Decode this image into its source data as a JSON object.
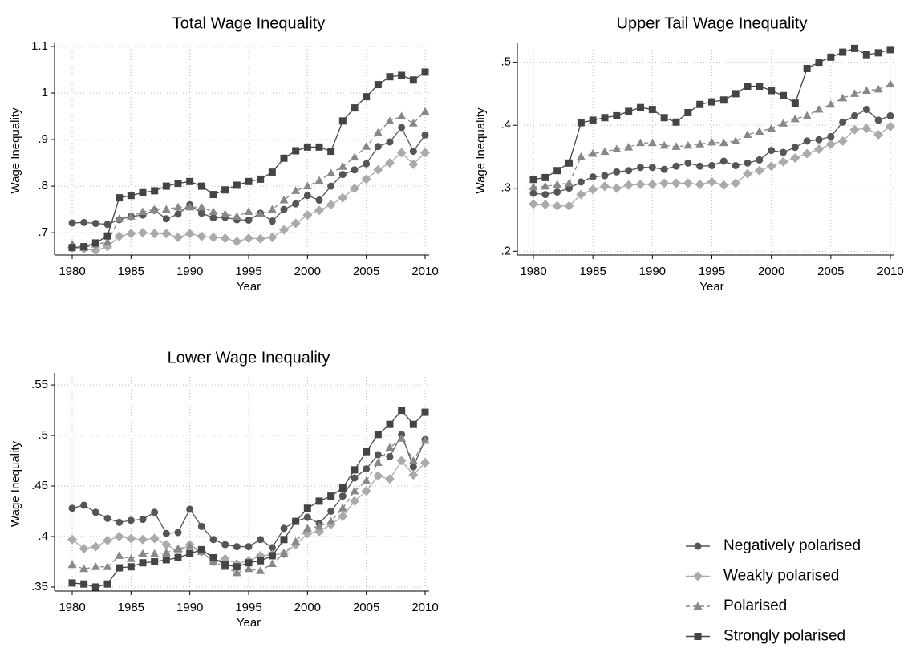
{
  "chart_data": [
    {
      "type": "line",
      "title": "Total Wage Inequality",
      "xlabel": "Year",
      "ylabel": "Wage Inequality",
      "x": [
        1980,
        1981,
        1982,
        1983,
        1984,
        1985,
        1986,
        1987,
        1988,
        1989,
        1990,
        1991,
        1992,
        1993,
        1994,
        1995,
        1996,
        1997,
        1998,
        1999,
        2000,
        2001,
        2002,
        2003,
        2004,
        2005,
        2006,
        2007,
        2008,
        2009,
        2010
      ],
      "xlim": [
        1980,
        2010
      ],
      "xticks": [
        1980,
        1985,
        1990,
        1995,
        2000,
        2005,
        2010
      ],
      "ylim": [
        0.652,
        1.1
      ],
      "yticks": [
        {
          "value": 0.7,
          "label": ".7"
        },
        {
          "value": 0.8,
          "label": ".8"
        },
        {
          "value": 0.9,
          "label": ".9"
        },
        1,
        1.1
      ],
      "grid": true,
      "series": [
        {
          "color": "#555555",
          "marker": "circle",
          "dashed": false,
          "values": [
            0.721,
            0.722,
            0.72,
            0.718,
            0.728,
            0.735,
            0.738,
            0.748,
            0.73,
            0.74,
            0.76,
            0.742,
            0.732,
            0.733,
            0.728,
            0.727,
            0.742,
            0.725,
            0.75,
            0.762,
            0.78,
            0.77,
            0.8,
            0.825,
            0.835,
            0.848,
            0.885,
            0.895,
            0.926,
            0.875,
            0.91
          ]
        },
        {
          "color": "#aaaaaa",
          "marker": "diamond",
          "dashed": false,
          "values": [
            0.668,
            0.665,
            0.662,
            0.67,
            0.692,
            0.698,
            0.7,
            0.698,
            0.698,
            0.69,
            0.698,
            0.692,
            0.69,
            0.688,
            0.681,
            0.688,
            0.687,
            0.69,
            0.706,
            0.72,
            0.738,
            0.748,
            0.76,
            0.775,
            0.795,
            0.815,
            0.835,
            0.85,
            0.872,
            0.847,
            0.872
          ]
        },
        {
          "color": "#888888",
          "marker": "triangle",
          "dashed": true,
          "values": [
            0.675,
            0.668,
            0.675,
            0.68,
            0.73,
            0.735,
            0.745,
            0.75,
            0.75,
            0.755,
            0.755,
            0.755,
            0.745,
            0.74,
            0.735,
            0.745,
            0.74,
            0.75,
            0.77,
            0.79,
            0.8,
            0.812,
            0.828,
            0.842,
            0.862,
            0.885,
            0.915,
            0.94,
            0.95,
            0.935,
            0.96
          ]
        },
        {
          "color": "#444444",
          "marker": "square",
          "dashed": false,
          "values": [
            0.668,
            0.67,
            0.678,
            0.693,
            0.775,
            0.78,
            0.786,
            0.79,
            0.8,
            0.806,
            0.81,
            0.8,
            0.782,
            0.792,
            0.802,
            0.81,
            0.815,
            0.83,
            0.86,
            0.876,
            0.884,
            0.884,
            0.875,
            0.94,
            0.968,
            0.992,
            1.018,
            1.035,
            1.038,
            1.028,
            1.045
          ]
        }
      ]
    },
    {
      "type": "line",
      "title": "Upper Tail Wage Inequality",
      "xlabel": "Year",
      "ylabel": "Wage Inequality",
      "x": [
        1980,
        1981,
        1982,
        1983,
        1984,
        1985,
        1986,
        1987,
        1988,
        1989,
        1990,
        1991,
        1992,
        1993,
        1994,
        1995,
        1996,
        1997,
        1998,
        1999,
        2000,
        2001,
        2002,
        2003,
        2004,
        2005,
        2006,
        2007,
        2008,
        2009,
        2010
      ],
      "xlim": [
        1980,
        2010
      ],
      "xticks": [
        1980,
        1985,
        1990,
        1995,
        2000,
        2005,
        2010
      ],
      "ylim": [
        0.194,
        0.525
      ],
      "yticks": [
        {
          "value": 0.2,
          "label": ".2"
        },
        {
          "value": 0.3,
          "label": ".3"
        },
        {
          "value": 0.4,
          "label": ".4"
        },
        {
          "value": 0.5,
          "label": ".5"
        }
      ],
      "grid": true,
      "series": [
        {
          "color": "#555555",
          "marker": "circle",
          "dashed": false,
          "values": [
            0.292,
            0.29,
            0.294,
            0.3,
            0.31,
            0.318,
            0.32,
            0.326,
            0.328,
            0.333,
            0.333,
            0.33,
            0.335,
            0.34,
            0.335,
            0.336,
            0.343,
            0.336,
            0.34,
            0.345,
            0.36,
            0.357,
            0.365,
            0.375,
            0.377,
            0.382,
            0.405,
            0.415,
            0.425,
            0.408,
            0.415
          ]
        },
        {
          "color": "#aaaaaa",
          "marker": "diamond",
          "dashed": false,
          "values": [
            0.275,
            0.274,
            0.272,
            0.272,
            0.29,
            0.298,
            0.303,
            0.3,
            0.305,
            0.306,
            0.306,
            0.308,
            0.308,
            0.308,
            0.306,
            0.31,
            0.305,
            0.308,
            0.323,
            0.328,
            0.335,
            0.342,
            0.348,
            0.355,
            0.362,
            0.37,
            0.375,
            0.393,
            0.395,
            0.385,
            0.398
          ]
        },
        {
          "color": "#888888",
          "marker": "triangle",
          "dashed": true,
          "values": [
            0.302,
            0.303,
            0.306,
            0.308,
            0.35,
            0.355,
            0.358,
            0.362,
            0.365,
            0.372,
            0.372,
            0.368,
            0.366,
            0.368,
            0.37,
            0.373,
            0.372,
            0.375,
            0.385,
            0.39,
            0.395,
            0.403,
            0.41,
            0.415,
            0.425,
            0.433,
            0.443,
            0.45,
            0.455,
            0.457,
            0.465
          ]
        },
        {
          "color": "#444444",
          "marker": "square",
          "dashed": false,
          "values": [
            0.314,
            0.317,
            0.328,
            0.34,
            0.404,
            0.408,
            0.412,
            0.415,
            0.422,
            0.428,
            0.425,
            0.412,
            0.405,
            0.42,
            0.433,
            0.437,
            0.44,
            0.45,
            0.462,
            0.462,
            0.455,
            0.447,
            0.435,
            0.49,
            0.5,
            0.508,
            0.516,
            0.522,
            0.512,
            0.515,
            0.52
          ]
        }
      ]
    },
    {
      "type": "line",
      "title": "Lower Wage Inequality",
      "xlabel": "Year",
      "ylabel": "Wage Inequality",
      "x": [
        1980,
        1981,
        1982,
        1983,
        1984,
        1985,
        1986,
        1987,
        1988,
        1989,
        1990,
        1991,
        1992,
        1993,
        1994,
        1995,
        1996,
        1997,
        1998,
        1999,
        2000,
        2001,
        2002,
        2003,
        2004,
        2005,
        2006,
        2007,
        2008,
        2009,
        2010
      ],
      "xlim": [
        1980,
        2010
      ],
      "xticks": [
        1980,
        1985,
        1990,
        1995,
        2000,
        2005,
        2010
      ],
      "ylim": [
        0.346,
        0.558
      ],
      "yticks": [
        {
          "value": 0.35,
          "label": ".35"
        },
        {
          "value": 0.4,
          "label": ".4"
        },
        {
          "value": 0.45,
          "label": ".45"
        },
        {
          "value": 0.5,
          "label": ".5"
        },
        {
          "value": 0.55,
          "label": ".55"
        }
      ],
      "grid": true,
      "series": [
        {
          "name": "Negatively polarised",
          "color": "#555555",
          "marker": "circle",
          "dashed": false,
          "values": [
            0.428,
            0.431,
            0.424,
            0.418,
            0.414,
            0.416,
            0.417,
            0.424,
            0.403,
            0.404,
            0.427,
            0.41,
            0.397,
            0.392,
            0.39,
            0.39,
            0.397,
            0.389,
            0.408,
            0.415,
            0.419,
            0.413,
            0.425,
            0.44,
            0.458,
            0.467,
            0.481,
            0.479,
            0.501,
            0.469,
            0.496
          ]
        },
        {
          "name": "Weakly polarised",
          "color": "#aaaaaa",
          "marker": "diamond",
          "dashed": false,
          "values": [
            0.397,
            0.388,
            0.39,
            0.396,
            0.4,
            0.398,
            0.397,
            0.398,
            0.392,
            0.385,
            0.392,
            0.385,
            0.375,
            0.378,
            0.373,
            0.376,
            0.381,
            0.382,
            0.383,
            0.392,
            0.403,
            0.405,
            0.412,
            0.42,
            0.435,
            0.445,
            0.46,
            0.457,
            0.475,
            0.461,
            0.473
          ]
        },
        {
          "name": "Polarised",
          "color": "#888888",
          "marker": "triangle",
          "dashed": true,
          "values": [
            0.372,
            0.368,
            0.37,
            0.37,
            0.381,
            0.378,
            0.383,
            0.383,
            0.384,
            0.388,
            0.39,
            0.385,
            0.375,
            0.37,
            0.364,
            0.368,
            0.366,
            0.373,
            0.383,
            0.395,
            0.408,
            0.41,
            0.415,
            0.428,
            0.445,
            0.455,
            0.473,
            0.488,
            0.497,
            0.475,
            0.495
          ]
        },
        {
          "name": "Strongly polarised",
          "color": "#444444",
          "marker": "square",
          "dashed": false,
          "values": [
            0.354,
            0.353,
            0.35,
            0.353,
            0.369,
            0.37,
            0.374,
            0.375,
            0.377,
            0.379,
            0.383,
            0.387,
            0.379,
            0.372,
            0.37,
            0.374,
            0.376,
            0.381,
            0.397,
            0.415,
            0.428,
            0.435,
            0.44,
            0.448,
            0.466,
            0.484,
            0.501,
            0.511,
            0.525,
            0.511,
            0.523
          ]
        }
      ]
    }
  ]
}
